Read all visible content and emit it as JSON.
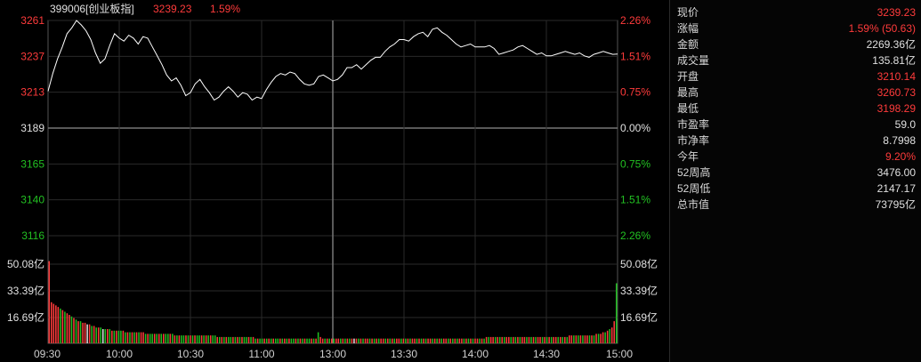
{
  "header": {
    "code_name": "399006[创业板指]",
    "price": "3239.23",
    "change_pct": "1.59%"
  },
  "colors": {
    "up": "#ff3b3b",
    "down": "#22c022",
    "neutral": "#e0e0e0",
    "grid": "#2a2a2a",
    "grid_strong": "#555555",
    "price_line": "#ffffff"
  },
  "chart_data": {
    "type": "line",
    "title": "",
    "base_price": 3189,
    "ylim": [
      3116,
      3262
    ],
    "price_ticks": [
      "3261",
      "3237",
      "3213",
      "3189",
      "3165",
      "3140",
      "3116"
    ],
    "pct_ticks": [
      "2.26%",
      "1.51%",
      "0.75%",
      "0.00%",
      "0.75%",
      "1.51%",
      "2.26%"
    ],
    "x_ticks": [
      "09:30",
      "10:00",
      "10:30",
      "11:00",
      "13:00",
      "13:30",
      "14:00",
      "14:30",
      "15:00"
    ],
    "series": [
      {
        "x": [
          0,
          2,
          4,
          6,
          8,
          10,
          12,
          14,
          16,
          18,
          20,
          22,
          24,
          26,
          28,
          30,
          32,
          34,
          36,
          38,
          40,
          42,
          44,
          46,
          48,
          50,
          52,
          54,
          56,
          58,
          60,
          62,
          64,
          66,
          68,
          70,
          72,
          74,
          76,
          78,
          80,
          82,
          84,
          86,
          88,
          90,
          92,
          94,
          96,
          98,
          100,
          102,
          104,
          106,
          108,
          110,
          112,
          114,
          116,
          118,
          120,
          122,
          124,
          126,
          128,
          130,
          132,
          134,
          136,
          138,
          140,
          142,
          144,
          146,
          148,
          150,
          152,
          154,
          156,
          158,
          160,
          162,
          164,
          166,
          168,
          170,
          172,
          174,
          176,
          178,
          180,
          182,
          184,
          186,
          188,
          190,
          192,
          194,
          196,
          198,
          200,
          202,
          204,
          206,
          208,
          210,
          212,
          214,
          216,
          218,
          220,
          222,
          224,
          226,
          228,
          230,
          232,
          234,
          236,
          238,
          240
        ],
        "values": [
          3214,
          3226,
          3236,
          3244,
          3253,
          3257,
          3262,
          3259,
          3255,
          3249,
          3240,
          3233,
          3236,
          3245,
          3253,
          3250,
          3248,
          3252,
          3250,
          3246,
          3251,
          3250,
          3244,
          3238,
          3232,
          3225,
          3221,
          3223,
          3218,
          3211,
          3213,
          3219,
          3222,
          3217,
          3213,
          3208,
          3210,
          3214,
          3217,
          3214,
          3210,
          3213,
          3212,
          3208,
          3210,
          3209,
          3215,
          3220,
          3224,
          3226,
          3225,
          3227,
          3226,
          3222,
          3219,
          3218,
          3219,
          3224,
          3225,
          3223,
          3221,
          3222,
          3225,
          3230,
          3230,
          3232,
          3229,
          3232,
          3235,
          3237,
          3237,
          3241,
          3244,
          3246,
          3249,
          3249,
          3248,
          3251,
          3253,
          3254,
          3251,
          3256,
          3257,
          3254,
          3252,
          3249,
          3246,
          3244,
          3245,
          3246,
          3244,
          3244,
          3244,
          3245,
          3243,
          3239,
          3240,
          3241,
          3242,
          3244,
          3245,
          3243,
          3241,
          3239,
          3240,
          3238,
          3238,
          3239,
          3240,
          3241,
          3240,
          3239,
          3240,
          3238,
          3237,
          3239,
          3240,
          3241,
          3240,
          3239,
          3239.23
        ]
      }
    ],
    "volume": {
      "unit": "亿",
      "ticks": [
        "50.08亿",
        "33.39亿",
        "16.69亿"
      ],
      "max": 50.08,
      "values": [
        52,
        26,
        25,
        24,
        23,
        22,
        21,
        20,
        19,
        18,
        17,
        16,
        15,
        14,
        14,
        13,
        13,
        12,
        12,
        11,
        11,
        10,
        10,
        10,
        9,
        9,
        9,
        9,
        8,
        8,
        8,
        8,
        8,
        8,
        7,
        7,
        7,
        7,
        7,
        7,
        7,
        7,
        7,
        6,
        6,
        6,
        6,
        6,
        6,
        6,
        6,
        6,
        6,
        6,
        6,
        6,
        5,
        5,
        5,
        5,
        5,
        5,
        5,
        5,
        5,
        5,
        5,
        5,
        5,
        5,
        5,
        5,
        5,
        5,
        5,
        4,
        4,
        4,
        4,
        4,
        4,
        4,
        4,
        4,
        4,
        4,
        4,
        4,
        4,
        4,
        4,
        4,
        3,
        3,
        3,
        3,
        3,
        3,
        3,
        3,
        3,
        3,
        3,
        3,
        3,
        3,
        3,
        3,
        3,
        3,
        3,
        3,
        3,
        3,
        3,
        3,
        3,
        3,
        3,
        3,
        7,
        4,
        3,
        3,
        3,
        3,
        3,
        3,
        3,
        3,
        3,
        3,
        3,
        3,
        3,
        3,
        3,
        3,
        3,
        3,
        3,
        3,
        3,
        3,
        3,
        3,
        3,
        3,
        3,
        3,
        3,
        3,
        3,
        3,
        3,
        3,
        3,
        3,
        3,
        3,
        3,
        3,
        3,
        3,
        3,
        3,
        3,
        3,
        3,
        3,
        3,
        3,
        3,
        3,
        3,
        3,
        3,
        3,
        3,
        3,
        3,
        3,
        3,
        3,
        3,
        3,
        3,
        3,
        3,
        3,
        3,
        3,
        3,
        3,
        3,
        4,
        4,
        4,
        4,
        4,
        4,
        4,
        4,
        4,
        4,
        4,
        4,
        4,
        4,
        4,
        4,
        4,
        4,
        4,
        4,
        4,
        4,
        4,
        4,
        4,
        4,
        4,
        4,
        4,
        4,
        4,
        4,
        4,
        4,
        4,
        4,
        4,
        5,
        5,
        5,
        5,
        5,
        5,
        5,
        5,
        5,
        5,
        5,
        5,
        6,
        6,
        6,
        7,
        7,
        8,
        9,
        10,
        14,
        38
      ],
      "colors": [
        "u",
        "u",
        "u",
        "u",
        "u",
        "d",
        "u",
        "d",
        "u",
        "u",
        "d",
        "u",
        "d",
        "u",
        "d",
        "u",
        "u",
        "n",
        "u",
        "d",
        "u",
        "d",
        "u",
        "d",
        "n",
        "d",
        "u",
        "d",
        "u",
        "d",
        "u",
        "d",
        "d",
        "u",
        "d",
        "u",
        "d",
        "u",
        "d",
        "u",
        "d",
        "u",
        "u",
        "d",
        "u",
        "d",
        "d",
        "u",
        "d",
        "u",
        "d",
        "u",
        "d",
        "d",
        "u",
        "d",
        "u",
        "d",
        "u",
        "d",
        "d",
        "u",
        "d",
        "u",
        "d",
        "u",
        "d",
        "d",
        "u",
        "d",
        "u",
        "d",
        "u",
        "d",
        "d",
        "u",
        "d",
        "u",
        "d",
        "u",
        "d",
        "d",
        "u",
        "d",
        "u",
        "d",
        "u",
        "d",
        "d",
        "u",
        "d",
        "u",
        "d",
        "u",
        "d",
        "d",
        "u",
        "d",
        "u",
        "d",
        "u",
        "d",
        "d",
        "u",
        "d",
        "u",
        "d",
        "u",
        "d",
        "d",
        "u",
        "d",
        "u",
        "d",
        "u",
        "d",
        "d",
        "u",
        "d",
        "u",
        "d",
        "u",
        "u",
        "d",
        "u",
        "d",
        "u",
        "d",
        "u",
        "u",
        "d",
        "u",
        "d",
        "u",
        "d",
        "u",
        "n",
        "u",
        "d",
        "u",
        "d",
        "u",
        "u",
        "d",
        "u",
        "d",
        "u",
        "d",
        "u",
        "u",
        "d",
        "u",
        "d",
        "u",
        "d",
        "u",
        "u",
        "d",
        "u",
        "d",
        "u",
        "d",
        "u",
        "u",
        "d",
        "u",
        "d",
        "u",
        "d",
        "u",
        "u",
        "d",
        "u",
        "d",
        "u",
        "d",
        "u",
        "u",
        "d",
        "u",
        "d",
        "u",
        "d",
        "u",
        "u",
        "d",
        "u",
        "d",
        "u",
        "d",
        "u",
        "u",
        "d",
        "u",
        "d",
        "u",
        "d",
        "u",
        "u",
        "d",
        "u",
        "d",
        "u",
        "d",
        "u",
        "u",
        "d",
        "u",
        "d",
        "u",
        "d",
        "u",
        "u",
        "d",
        "u",
        "d",
        "u",
        "d",
        "u",
        "u",
        "d",
        "u",
        "d",
        "u",
        "d",
        "u",
        "u",
        "d",
        "u",
        "d",
        "u",
        "d",
        "u",
        "u",
        "d",
        "u",
        "d",
        "u",
        "d",
        "u",
        "u",
        "d",
        "u",
        "d",
        "u",
        "d",
        "u",
        "u",
        "d",
        "u",
        "d",
        "u",
        "u",
        "d",
        "u",
        "d",
        "d"
      ]
    }
  },
  "quote": {
    "rows": [
      {
        "label": "现价",
        "value": "3239.23",
        "color": "red"
      },
      {
        "label": "涨幅",
        "value": "1.59% (50.63)",
        "color": "red"
      },
      {
        "label": "金额",
        "value": "2269.36亿",
        "color": "white"
      },
      {
        "label": "成交量",
        "value": "135.81亿",
        "color": "white"
      },
      {
        "label": "开盘",
        "value": "3210.14",
        "color": "red"
      },
      {
        "label": "最高",
        "value": "3260.73",
        "color": "red"
      },
      {
        "label": "最低",
        "value": "3198.29",
        "color": "red"
      },
      {
        "label": "市盈率",
        "value": "59.0",
        "color": "white"
      },
      {
        "label": "市净率",
        "value": "8.7998",
        "color": "white"
      },
      {
        "label": "今年",
        "value": "9.20%",
        "color": "red"
      },
      {
        "label": "52周高",
        "value": "3476.00",
        "color": "white"
      },
      {
        "label": "52周低",
        "value": "2147.17",
        "color": "white"
      },
      {
        "label": "总市值",
        "value": "73795亿",
        "color": "white"
      }
    ]
  }
}
